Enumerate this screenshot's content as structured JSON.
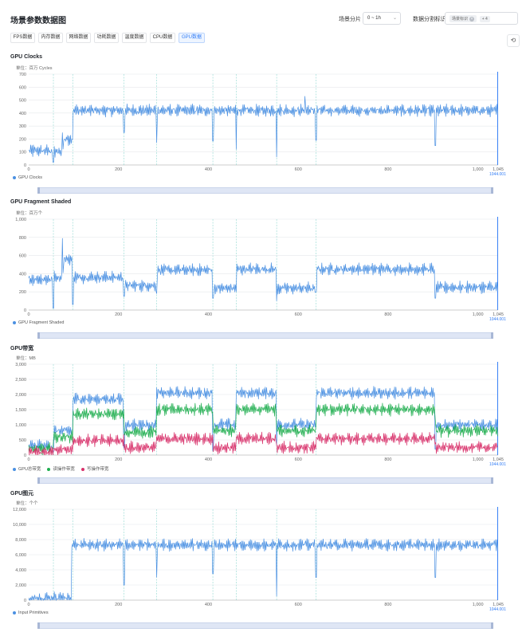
{
  "header": {
    "title": "场景参数数据图",
    "scene_label": "场景分片",
    "scene_value": "0 ~ 1h",
    "split_label": "数据分割标识",
    "split_tag": "场景标识",
    "split_more": "+ 4"
  },
  "tabs": [
    {
      "label": "FPS数据",
      "active": false
    },
    {
      "label": "内存数据",
      "active": false
    },
    {
      "label": "网络数据",
      "active": false
    },
    {
      "label": "功耗数据",
      "active": false
    },
    {
      "label": "温度数据",
      "active": false
    },
    {
      "label": "CPU数据",
      "active": false
    },
    {
      "label": "GPU数据",
      "active": true
    }
  ],
  "refresh_icon": "refresh-icon",
  "colors": {
    "blue": "#4a90e2",
    "green": "#1fae4f",
    "red": "#d8306a",
    "marker": "#8fd8d0",
    "accent": "#2f7bf6"
  },
  "end_marker_label": "1044.001",
  "chart_data": [
    {
      "type": "line",
      "title": "GPU Clocks",
      "unit": "单位：百万 Cycles",
      "xlim": [
        0,
        1045
      ],
      "ylim": [
        0,
        700
      ],
      "xticks": [
        "0",
        "200",
        "400",
        "600",
        "800",
        "1,000",
        "1,045"
      ],
      "yticks": [
        "0",
        "100",
        "200",
        "300",
        "400",
        "500",
        "600",
        "700"
      ],
      "markers_x": [
        55,
        98,
        212,
        285,
        410,
        462,
        552,
        640
      ],
      "series": [
        {
          "name": "GPU Clocks",
          "color": "#4a90e2",
          "segments": [
            [
              0,
              55,
              110
            ],
            [
              55,
              78,
              100
            ],
            [
              78,
              98,
              200
            ],
            [
              98,
              1045,
              420
            ]
          ],
          "spikes": [
            [
              55,
              20
            ],
            [
              75,
              250
            ],
            [
              212,
              250
            ],
            [
              285,
              170
            ],
            [
              410,
              185
            ],
            [
              462,
              120
            ],
            [
              552,
              60
            ],
            [
              615,
              530
            ],
            [
              640,
              190
            ],
            [
              905,
              150
            ]
          ]
        }
      ]
    },
    {
      "type": "line",
      "title": "GPU Fragment Shaded",
      "unit": "单位：百万个",
      "xlim": [
        0,
        1045
      ],
      "ylim": [
        0,
        1000
      ],
      "xticks": [
        "0",
        "200",
        "400",
        "600",
        "800",
        "1,000",
        "1,045"
      ],
      "yticks": [
        "0",
        "200",
        "400",
        "600",
        "800",
        "1,000"
      ],
      "markers_x": [
        55,
        98,
        212,
        285,
        410,
        462,
        552,
        640
      ],
      "series": [
        {
          "name": "GPU Fragment Shaded",
          "color": "#4a90e2",
          "segments": [
            [
              0,
              55,
              340
            ],
            [
              55,
              78,
              360
            ],
            [
              78,
              98,
              560
            ],
            [
              98,
              212,
              360
            ],
            [
              212,
              285,
              270
            ],
            [
              285,
              410,
              440
            ],
            [
              410,
              462,
              240
            ],
            [
              462,
              552,
              450
            ],
            [
              552,
              640,
              240
            ],
            [
              640,
              905,
              450
            ],
            [
              905,
              1045,
              250
            ]
          ],
          "spikes": [
            [
              55,
              20
            ],
            [
              75,
              790
            ],
            [
              98,
              60
            ],
            [
              212,
              150
            ],
            [
              285,
              180
            ],
            [
              410,
              130
            ],
            [
              462,
              200
            ],
            [
              552,
              100
            ],
            [
              640,
              200
            ],
            [
              905,
              130
            ]
          ]
        }
      ]
    },
    {
      "type": "line",
      "title": "GPU带宽",
      "unit": "单位：MB",
      "xlim": [
        0,
        1045
      ],
      "ylim": [
        0,
        3000
      ],
      "xticks": [
        "0",
        "200",
        "400",
        "600",
        "800",
        "1,000",
        "1,045"
      ],
      "yticks": [
        "0",
        "500",
        "1,000",
        "1,500",
        "2,000",
        "2,500",
        "3,000"
      ],
      "markers_x": [
        55,
        98,
        212,
        285,
        410,
        462,
        552,
        640
      ],
      "series": [
        {
          "name": "GPU总带宽",
          "color": "#4a90e2",
          "segments": [
            [
              0,
              55,
              300
            ],
            [
              55,
              98,
              800
            ],
            [
              98,
              212,
              1850
            ],
            [
              212,
              285,
              1000
            ],
            [
              285,
              410,
              2050
            ],
            [
              410,
              462,
              1000
            ],
            [
              462,
              552,
              2050
            ],
            [
              552,
              640,
              1000
            ],
            [
              640,
              905,
              2050
            ],
            [
              905,
              1045,
              1000
            ]
          ],
          "spikes": [
            [
              55,
              100
            ],
            [
              212,
              250
            ],
            [
              410,
              150
            ],
            [
              552,
              300
            ],
            [
              905,
              200
            ]
          ]
        },
        {
          "name": "读操作带宽",
          "color": "#1fae4f",
          "segments": [
            [
              0,
              55,
              200
            ],
            [
              55,
              98,
              600
            ],
            [
              98,
              212,
              1350
            ],
            [
              212,
              285,
              750
            ],
            [
              285,
              410,
              1500
            ],
            [
              410,
              462,
              800
            ],
            [
              462,
              552,
              1500
            ],
            [
              552,
              640,
              800
            ],
            [
              640,
              905,
              1500
            ],
            [
              905,
              1045,
              800
            ]
          ],
          "spikes": []
        },
        {
          "name": "写操作带宽",
          "color": "#d8306a",
          "segments": [
            [
              0,
              55,
              100
            ],
            [
              55,
              98,
              200
            ],
            [
              98,
              212,
              480
            ],
            [
              212,
              285,
              250
            ],
            [
              285,
              410,
              540
            ],
            [
              410,
              462,
              250
            ],
            [
              462,
              552,
              540
            ],
            [
              552,
              640,
              250
            ],
            [
              640,
              905,
              540
            ],
            [
              905,
              1045,
              250
            ]
          ],
          "spikes": []
        }
      ]
    },
    {
      "type": "line",
      "title": "GPU图元",
      "unit": "单位：个个",
      "xlim": [
        0,
        1045
      ],
      "ylim": [
        0,
        12000
      ],
      "xticks": [
        "0",
        "200",
        "400",
        "600",
        "800",
        "1,000",
        "1,045"
      ],
      "yticks": [
        "0",
        "2,000",
        "4,000",
        "6,000",
        "8,000",
        "10,000",
        "12,000"
      ],
      "markers_x": [
        55,
        98,
        212,
        285,
        410,
        462,
        552,
        640
      ],
      "series": [
        {
          "name": "Input Primitives",
          "color": "#4a90e2",
          "segments": [
            [
              0,
              55,
              150
            ],
            [
              55,
              95,
              250
            ],
            [
              95,
              1045,
              7300
            ]
          ],
          "spikes": [
            [
              212,
              2000
            ],
            [
              285,
              3000
            ],
            [
              410,
              3500
            ],
            [
              552,
              500
            ],
            [
              640,
              3000
            ],
            [
              905,
              3000
            ]
          ]
        }
      ]
    }
  ]
}
